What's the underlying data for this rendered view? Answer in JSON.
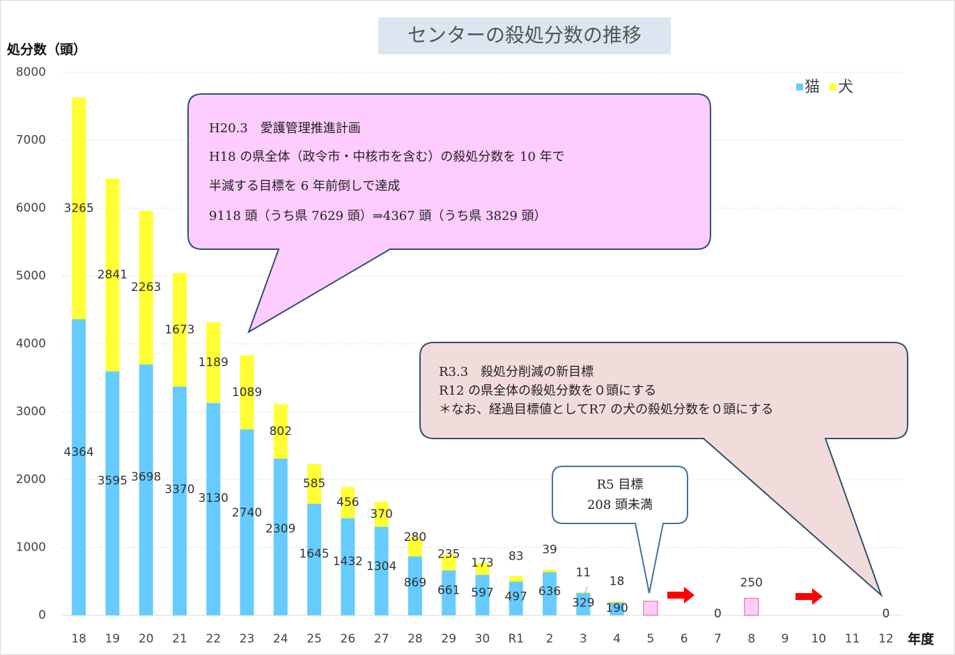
{
  "chart_data": {
    "type": "bar",
    "title": "センターの殺処分数の推移",
    "y_label": "処分数（頭）",
    "x_label": "年度",
    "categories": [
      "18",
      "19",
      "20",
      "21",
      "22",
      "23",
      "24",
      "25",
      "26",
      "27",
      "28",
      "29",
      "30",
      "R1",
      "2",
      "3",
      "4",
      "5",
      "6",
      "7",
      "8",
      "9",
      "10",
      "11",
      "12"
    ],
    "series": [
      {
        "name": "猫",
        "color": "#66ccff",
        "values": [
          4364,
          3595,
          3698,
          3370,
          3130,
          2740,
          2309,
          1645,
          1432,
          1304,
          869,
          661,
          597,
          497,
          636,
          329,
          190,
          null,
          null,
          null,
          null,
          null,
          null,
          null,
          null
        ]
      },
      {
        "name": "犬",
        "color": "#ffff33",
        "values": [
          3265,
          2841,
          2263,
          1673,
          1189,
          1089,
          802,
          585,
          456,
          370,
          280,
          235,
          173,
          83,
          39,
          11,
          18,
          null,
          null,
          null,
          null,
          null,
          null,
          null,
          null
        ]
      },
      {
        "color": "#ffccff",
        "values": [
          null,
          null,
          null,
          null,
          null,
          null,
          null,
          null,
          null,
          null,
          null,
          null,
          null,
          null,
          null,
          null,
          null,
          208,
          null,
          0,
          250,
          null,
          null,
          null,
          0
        ],
        "value_labels": [
          null,
          null,
          null,
          null,
          null,
          null,
          null,
          null,
          null,
          null,
          null,
          null,
          null,
          null,
          null,
          null,
          null,
          null,
          null,
          "0",
          "250",
          null,
          null,
          null,
          "0"
        ]
      }
    ],
    "ylim": [
      0,
      8000
    ],
    "yticks": [
      0,
      1000,
      2000,
      3000,
      4000,
      5000,
      6000,
      7000,
      8000
    ],
    "grid": true,
    "legend": "top-right",
    "annotations": [
      {
        "lines": [
          "H20.3　愛護管理推進計画",
          "H18 の県全体（政令市・中核市を含む）の殺処分数を 10 年で",
          "半減する目標を 6 年前倒しで達成",
          "9118 頭（うち県 7629 頭）⇒4367 頭（うち県 3829 頭）"
        ]
      },
      {
        "lines": [
          "R3.3　殺処分削減の新目標",
          "R12 の県全体の殺処分数を０頭にする",
          "＊なお、経過目標値としてR7 の犬の殺処分数を０頭にする"
        ]
      },
      {
        "lines": [
          "R5 目標",
          "208 頭未満"
        ]
      }
    ]
  }
}
